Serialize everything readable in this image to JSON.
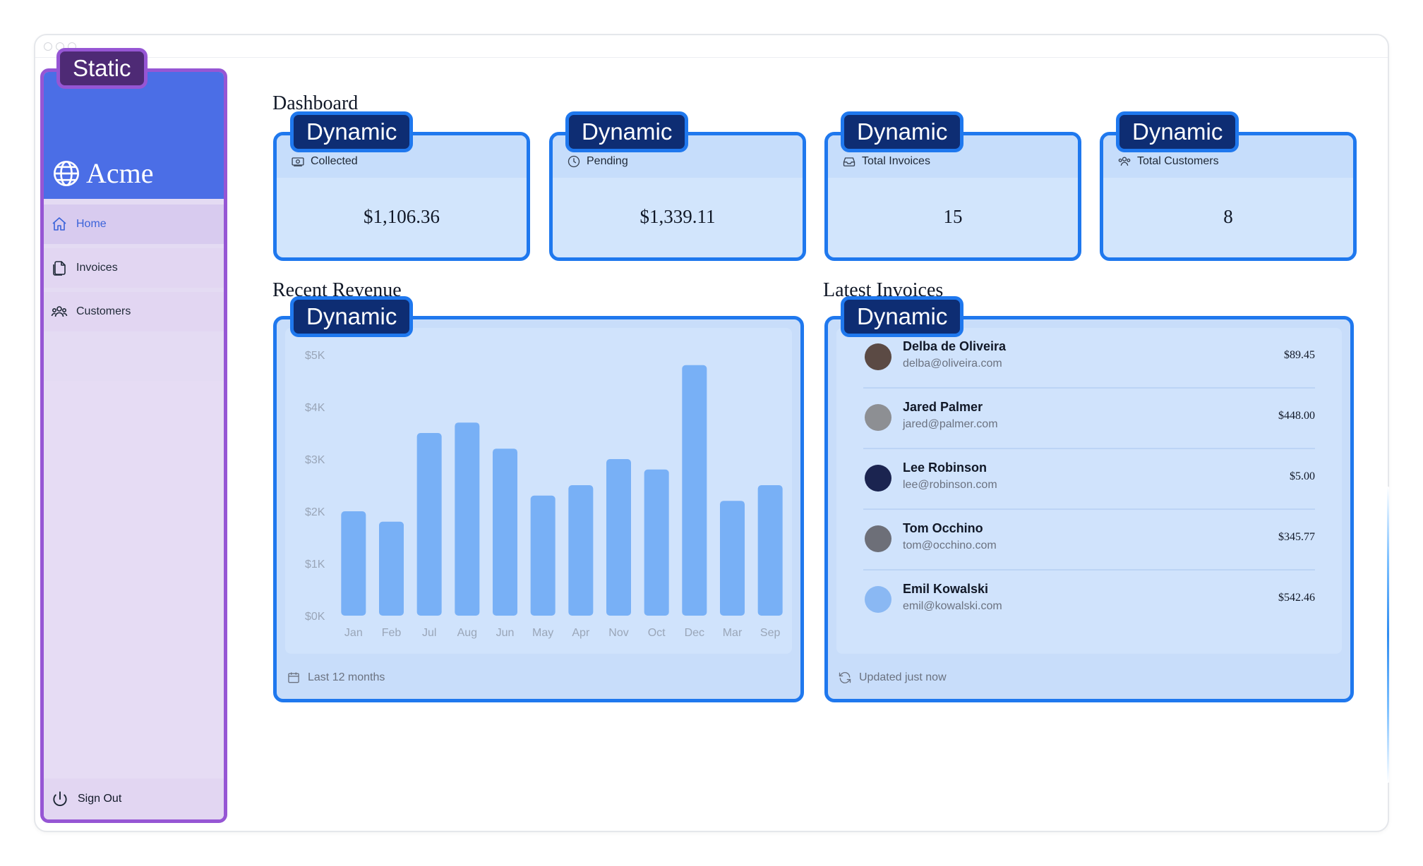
{
  "overlay": {
    "static_tag": "Static",
    "dynamic_tag": "Dynamic"
  },
  "sidebar": {
    "brand": "Acme",
    "items": [
      {
        "label": "Home",
        "icon": "home-icon",
        "active": true
      },
      {
        "label": "Invoices",
        "icon": "document-icon",
        "active": false
      },
      {
        "label": "Customers",
        "icon": "users-icon",
        "active": false
      }
    ],
    "signout": "Sign Out"
  },
  "dashboard": {
    "title": "Dashboard",
    "cards": [
      {
        "label": "Collected",
        "icon": "banknotes-icon",
        "value": "$1,106.36"
      },
      {
        "label": "Pending",
        "icon": "clock-icon",
        "value": "$1,339.11"
      },
      {
        "label": "Total Invoices",
        "icon": "inbox-icon",
        "value": "15"
      },
      {
        "label": "Total Customers",
        "icon": "user-group-icon",
        "value": "8"
      }
    ]
  },
  "revenue": {
    "title": "Recent Revenue",
    "footer": "Last 12 months"
  },
  "latest": {
    "title": "Latest Invoices",
    "footer": "Updated just now",
    "invoices": [
      {
        "name": "Delba de Oliveira",
        "email": "delba@oliveira.com",
        "amount": "$89.45",
        "avatar_color": "#5b4a44"
      },
      {
        "name": "Jared Palmer",
        "email": "jared@palmer.com",
        "amount": "$448.00",
        "avatar_color": "#8d8f93"
      },
      {
        "name": "Lee Robinson",
        "email": "lee@robinson.com",
        "amount": "$5.00",
        "avatar_color": "#1b2450"
      },
      {
        "name": "Tom Occhino",
        "email": "tom@occhino.com",
        "amount": "$345.77",
        "avatar_color": "#6d6f78"
      },
      {
        "name": "Emil Kowalski",
        "email": "emil@kowalski.com",
        "amount": "$542.46",
        "avatar_color": "#8ab8f3"
      }
    ]
  },
  "colors": {
    "accent": "#1f78ee",
    "bar": "#78b0f6",
    "static_border": "#9656d4",
    "brand": "#4b6ee6"
  },
  "chart_data": {
    "type": "bar",
    "categories": [
      "Jan",
      "Feb",
      "Jul",
      "Aug",
      "Jun",
      "May",
      "Apr",
      "Nov",
      "Oct",
      "Dec",
      "Mar",
      "Sep"
    ],
    "values": [
      2000,
      1800,
      3500,
      3700,
      3200,
      2300,
      2500,
      3000,
      2800,
      4800,
      2200,
      2500
    ],
    "ytick_labels": [
      "$5K",
      "$4K",
      "$3K",
      "$2K",
      "$1K",
      "$0K"
    ],
    "ylim": [
      0,
      5000
    ],
    "title": "",
    "xlabel": "",
    "ylabel": ""
  }
}
